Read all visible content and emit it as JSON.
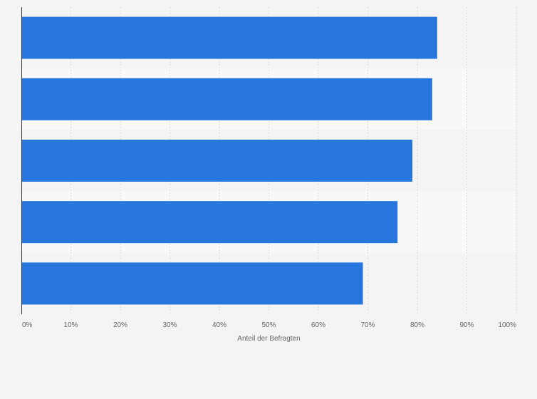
{
  "chart_data": {
    "type": "bar",
    "orientation": "horizontal",
    "categories": [
      "",
      "",
      "",
      "",
      ""
    ],
    "values": [
      84,
      83,
      79,
      76,
      69
    ],
    "xlim": [
      0,
      100
    ],
    "xticks": [
      "0%",
      "10%",
      "20%",
      "30%",
      "40%",
      "50%",
      "60%",
      "70%",
      "80%",
      "90%",
      "100%"
    ],
    "xlabel": "Anteil der Befragten",
    "ylabel": "",
    "title": "",
    "grid": true,
    "legend": "none",
    "colors": {
      "bar": "#2776dd",
      "background": "#f4f4f4",
      "band_light": "#f8f8f8",
      "grid": "#dddddd",
      "axis": "#333333",
      "text": "#666666"
    }
  }
}
